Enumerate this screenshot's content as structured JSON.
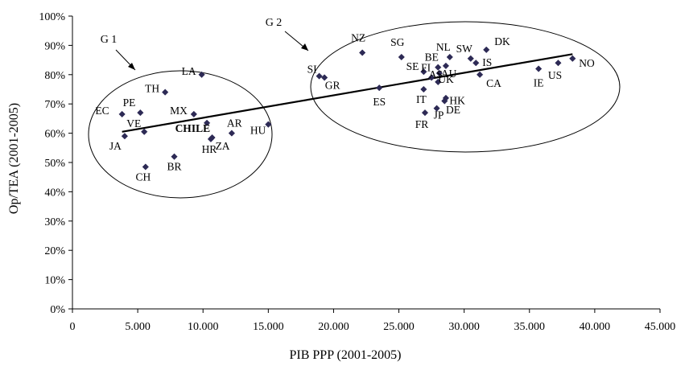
{
  "chart_data": {
    "type": "scatter",
    "xlabel": "PIB PPP (2001-2005)",
    "ylabel": "Op/TEA (2001-2005)",
    "xlim": [
      0,
      45000
    ],
    "ylim": [
      0,
      100
    ],
    "x_ticks": [
      "0",
      "5.000",
      "10.000",
      "15.000",
      "20.000",
      "25.000",
      "30.000",
      "35.000",
      "40.000",
      "45.000"
    ],
    "y_ticks": [
      "0%",
      "10%",
      "20%",
      "30%",
      "40%",
      "50%",
      "60%",
      "70%",
      "80%",
      "90%",
      "100%"
    ],
    "grid": false,
    "marker_color": "#2d2a55",
    "points": [
      {
        "label": "EC",
        "x": 3800,
        "y": 66.5
      },
      {
        "label": "JA",
        "x": 4000,
        "y": 59
      },
      {
        "label": "PE",
        "x": 5200,
        "y": 67
      },
      {
        "label": "VE",
        "x": 5500,
        "y": 60.5
      },
      {
        "label": "CH",
        "x": 5600,
        "y": 48.5
      },
      {
        "label": "TH",
        "x": 7100,
        "y": 74
      },
      {
        "label": "BR",
        "x": 7800,
        "y": 52
      },
      {
        "label": "MX",
        "x": 9300,
        "y": 66.5
      },
      {
        "label": "LA",
        "x": 9900,
        "y": 80
      },
      {
        "label": "CHILE",
        "x": 10300,
        "y": 63.5,
        "bold": true
      },
      {
        "label": "HR",
        "x": 10600,
        "y": 58
      },
      {
        "label": "ZA",
        "x": 10700,
        "y": 58.5
      },
      {
        "label": "AR",
        "x": 12200,
        "y": 60
      },
      {
        "label": "HU",
        "x": 15000,
        "y": 63
      },
      {
        "label": "SI",
        "x": 18900,
        "y": 79.5
      },
      {
        "label": "GR",
        "x": 19300,
        "y": 79
      },
      {
        "label": "NZ",
        "x": 22200,
        "y": 87.5
      },
      {
        "label": "ES",
        "x": 23500,
        "y": 75.5
      },
      {
        "label": "SG",
        "x": 25200,
        "y": 86
      },
      {
        "label": "SE",
        "x": 26900,
        "y": 81
      },
      {
        "label": "IT",
        "x": 26900,
        "y": 75
      },
      {
        "label": "FR",
        "x": 27000,
        "y": 67
      },
      {
        "label": "FI",
        "x": 27500,
        "y": 79
      },
      {
        "label": "UK",
        "x": 28000,
        "y": 77.5
      },
      {
        "label": "BE",
        "x": 28000,
        "y": 82.5
      },
      {
        "label": "AU",
        "x": 28100,
        "y": 80.5
      },
      {
        "label": "JP",
        "x": 27900,
        "y": 68.5
      },
      {
        "label": "HK",
        "x": 28500,
        "y": 71
      },
      {
        "label": "DE",
        "x": 28600,
        "y": 72
      },
      {
        "label": "NL",
        "x": 28900,
        "y": 86
      },
      {
        "label": "AS",
        "x": 28600,
        "y": 83
      },
      {
        "label": "SW",
        "x": 30500,
        "y": 85.5
      },
      {
        "label": "IS",
        "x": 30900,
        "y": 84
      },
      {
        "label": "CA",
        "x": 31200,
        "y": 80
      },
      {
        "label": "DK",
        "x": 31700,
        "y": 88.5
      },
      {
        "label": "IE",
        "x": 35700,
        "y": 82
      },
      {
        "label": "US",
        "x": 37200,
        "y": 84
      },
      {
        "label": "NO",
        "x": 38300,
        "y": 85.5
      }
    ],
    "trendline": {
      "x": [
        3800,
        38300
      ],
      "y": [
        60.5,
        87
      ]
    },
    "groups": [
      {
        "label": "G 1"
      },
      {
        "label": "G 2"
      }
    ]
  }
}
